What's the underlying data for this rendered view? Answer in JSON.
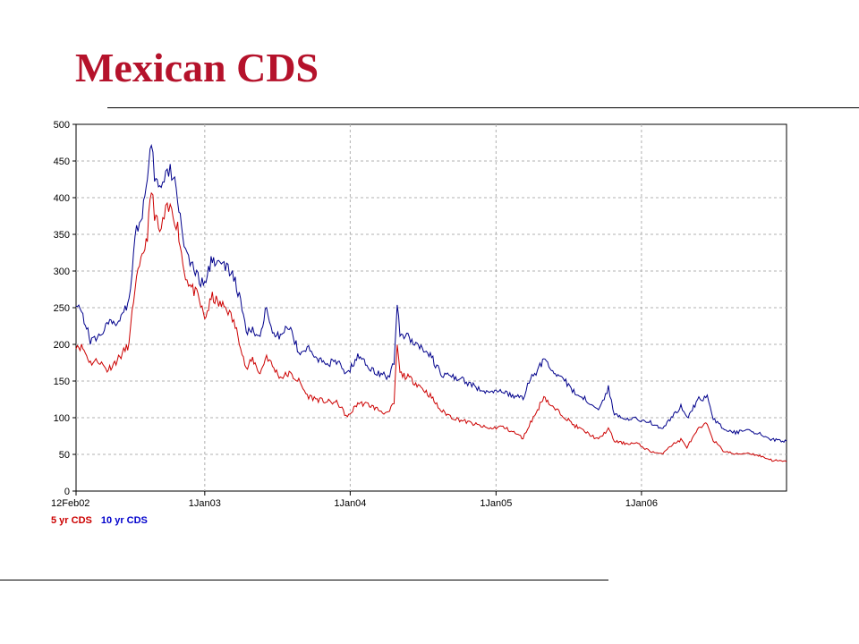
{
  "slide": {
    "title": "Mexican CDS"
  },
  "chart_data": {
    "type": "line",
    "title": "",
    "xlabel": "",
    "ylabel": "",
    "ylim": [
      0,
      500
    ],
    "yticks": [
      0,
      50,
      100,
      150,
      200,
      250,
      300,
      350,
      400,
      450,
      500
    ],
    "xlim": [
      "2002-02-12",
      "2006-12-31"
    ],
    "xticks": [
      {
        "date": "2002-02-12",
        "label": "12Feb02"
      },
      {
        "date": "2003-01-01",
        "label": "1Jan03"
      },
      {
        "date": "2004-01-01",
        "label": "1Jan04"
      },
      {
        "date": "2005-01-01",
        "label": "1Jan05"
      },
      {
        "date": "2006-01-01",
        "label": "1Jan06"
      }
    ],
    "grid": true,
    "legend_position": "bottom-left",
    "series": [
      {
        "name": "5 yr CDS",
        "color": "#cc0000",
        "points": [
          [
            "2002-02-12",
            200
          ],
          [
            "2002-03-01",
            195
          ],
          [
            "2002-03-20",
            175
          ],
          [
            "2002-04-10",
            178
          ],
          [
            "2002-05-01",
            165
          ],
          [
            "2002-05-20",
            175
          ],
          [
            "2002-06-05",
            185
          ],
          [
            "2002-06-25",
            200
          ],
          [
            "2002-07-10",
            280
          ],
          [
            "2002-07-25",
            310
          ],
          [
            "2002-08-10",
            350
          ],
          [
            "2002-08-20",
            410
          ],
          [
            "2002-08-28",
            380
          ],
          [
            "2002-09-10",
            350
          ],
          [
            "2002-09-25",
            380
          ],
          [
            "2002-10-10",
            385
          ],
          [
            "2002-10-25",
            360
          ],
          [
            "2002-11-10",
            300
          ],
          [
            "2002-11-25",
            280
          ],
          [
            "2002-12-15",
            265
          ],
          [
            "2003-01-01",
            235
          ],
          [
            "2003-01-20",
            265
          ],
          [
            "2003-02-05",
            255
          ],
          [
            "2003-02-25",
            250
          ],
          [
            "2003-03-15",
            230
          ],
          [
            "2003-04-01",
            200
          ],
          [
            "2003-04-15",
            165
          ],
          [
            "2003-05-01",
            180
          ],
          [
            "2003-05-20",
            160
          ],
          [
            "2003-06-05",
            185
          ],
          [
            "2003-06-20",
            170
          ],
          [
            "2003-07-10",
            155
          ],
          [
            "2003-08-01",
            160
          ],
          [
            "2003-08-25",
            150
          ],
          [
            "2003-09-15",
            130
          ],
          [
            "2003-10-10",
            125
          ],
          [
            "2003-11-01",
            122
          ],
          [
            "2003-12-01",
            120
          ],
          [
            "2003-12-25",
            100
          ],
          [
            "2004-01-20",
            120
          ],
          [
            "2004-02-15",
            118
          ],
          [
            "2004-03-15",
            110
          ],
          [
            "2004-04-05",
            105
          ],
          [
            "2004-04-20",
            120
          ],
          [
            "2004-04-28",
            200
          ],
          [
            "2004-05-05",
            160
          ],
          [
            "2004-05-25",
            155
          ],
          [
            "2004-06-20",
            145
          ],
          [
            "2004-07-20",
            130
          ],
          [
            "2004-08-15",
            110
          ],
          [
            "2004-09-15",
            100
          ],
          [
            "2004-10-15",
            95
          ],
          [
            "2004-11-15",
            90
          ],
          [
            "2004-12-15",
            85
          ],
          [
            "2005-01-15",
            88
          ],
          [
            "2005-02-15",
            80
          ],
          [
            "2005-03-10",
            72
          ],
          [
            "2005-03-25",
            90
          ],
          [
            "2005-04-15",
            110
          ],
          [
            "2005-05-01",
            130
          ],
          [
            "2005-05-20",
            115
          ],
          [
            "2005-06-15",
            105
          ],
          [
            "2005-07-15",
            90
          ],
          [
            "2005-08-15",
            80
          ],
          [
            "2005-09-15",
            70
          ],
          [
            "2005-10-10",
            85
          ],
          [
            "2005-10-25",
            68
          ],
          [
            "2005-11-20",
            65
          ],
          [
            "2005-12-20",
            65
          ],
          [
            "2006-01-20",
            55
          ],
          [
            "2006-02-20",
            50
          ],
          [
            "2006-03-10",
            60
          ],
          [
            "2006-04-10",
            70
          ],
          [
            "2006-04-25",
            60
          ],
          [
            "2006-05-25",
            85
          ],
          [
            "2006-06-15",
            92
          ],
          [
            "2006-06-30",
            70
          ],
          [
            "2006-07-25",
            55
          ],
          [
            "2006-08-25",
            50
          ],
          [
            "2006-09-25",
            52
          ],
          [
            "2006-10-25",
            48
          ],
          [
            "2006-11-25",
            42
          ],
          [
            "2006-12-31",
            40
          ]
        ]
      },
      {
        "name": "10 yr CDS",
        "color": "#00008b",
        "points": [
          [
            "2002-02-12",
            260
          ],
          [
            "2002-03-01",
            240
          ],
          [
            "2002-03-20",
            205
          ],
          [
            "2002-04-10",
            210
          ],
          [
            "2002-05-01",
            230
          ],
          [
            "2002-05-20",
            225
          ],
          [
            "2002-06-05",
            240
          ],
          [
            "2002-06-25",
            260
          ],
          [
            "2002-07-10",
            350
          ],
          [
            "2002-07-25",
            370
          ],
          [
            "2002-08-10",
            420
          ],
          [
            "2002-08-20",
            470
          ],
          [
            "2002-08-28",
            430
          ],
          [
            "2002-09-10",
            410
          ],
          [
            "2002-09-25",
            430
          ],
          [
            "2002-10-10",
            435
          ],
          [
            "2002-10-25",
            400
          ],
          [
            "2002-11-10",
            340
          ],
          [
            "2002-11-25",
            310
          ],
          [
            "2002-12-15",
            290
          ],
          [
            "2003-01-01",
            280
          ],
          [
            "2003-01-20",
            320
          ],
          [
            "2003-02-05",
            310
          ],
          [
            "2003-02-25",
            305
          ],
          [
            "2003-03-15",
            290
          ],
          [
            "2003-04-01",
            260
          ],
          [
            "2003-04-15",
            215
          ],
          [
            "2003-05-01",
            220
          ],
          [
            "2003-05-20",
            205
          ],
          [
            "2003-06-05",
            255
          ],
          [
            "2003-06-20",
            220
          ],
          [
            "2003-07-10",
            210
          ],
          [
            "2003-08-01",
            225
          ],
          [
            "2003-08-25",
            190
          ],
          [
            "2003-09-15",
            195
          ],
          [
            "2003-10-10",
            180
          ],
          [
            "2003-11-01",
            175
          ],
          [
            "2003-12-01",
            175
          ],
          [
            "2003-12-25",
            160
          ],
          [
            "2004-01-20",
            185
          ],
          [
            "2004-02-15",
            170
          ],
          [
            "2004-03-15",
            160
          ],
          [
            "2004-04-05",
            155
          ],
          [
            "2004-04-20",
            175
          ],
          [
            "2004-04-28",
            260
          ],
          [
            "2004-05-05",
            215
          ],
          [
            "2004-05-25",
            210
          ],
          [
            "2004-06-20",
            200
          ],
          [
            "2004-07-20",
            185
          ],
          [
            "2004-08-15",
            160
          ],
          [
            "2004-09-15",
            155
          ],
          [
            "2004-10-15",
            150
          ],
          [
            "2004-11-15",
            140
          ],
          [
            "2004-12-15",
            135
          ],
          [
            "2005-01-15",
            135
          ],
          [
            "2005-02-15",
            130
          ],
          [
            "2005-03-10",
            125
          ],
          [
            "2005-03-25",
            150
          ],
          [
            "2005-04-15",
            165
          ],
          [
            "2005-05-01",
            180
          ],
          [
            "2005-05-20",
            165
          ],
          [
            "2005-06-15",
            155
          ],
          [
            "2005-07-15",
            135
          ],
          [
            "2005-08-15",
            125
          ],
          [
            "2005-09-15",
            110
          ],
          [
            "2005-10-10",
            140
          ],
          [
            "2005-10-25",
            105
          ],
          [
            "2005-11-20",
            100
          ],
          [
            "2005-12-20",
            98
          ],
          [
            "2006-01-20",
            95
          ],
          [
            "2006-02-20",
            85
          ],
          [
            "2006-03-10",
            95
          ],
          [
            "2006-04-10",
            115
          ],
          [
            "2006-04-25",
            100
          ],
          [
            "2006-05-25",
            125
          ],
          [
            "2006-06-15",
            128
          ],
          [
            "2006-06-30",
            100
          ],
          [
            "2006-07-25",
            85
          ],
          [
            "2006-08-25",
            80
          ],
          [
            "2006-09-25",
            82
          ],
          [
            "2006-10-25",
            78
          ],
          [
            "2006-11-25",
            70
          ],
          [
            "2006-12-31",
            68
          ]
        ]
      }
    ]
  }
}
